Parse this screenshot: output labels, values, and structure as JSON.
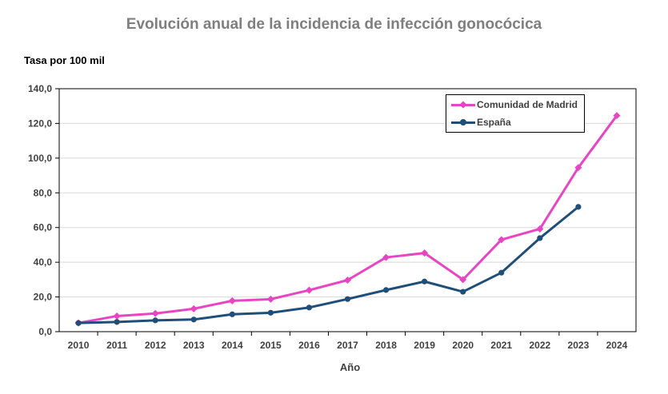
{
  "chart_data": {
    "type": "line",
    "title": "Evolución anual de la incidencia de infección gonocócica",
    "ylabel": "Tasa por 100 mil",
    "xlabel": "Año",
    "categories": [
      "2010",
      "2011",
      "2012",
      "2013",
      "2014",
      "2015",
      "2016",
      "2017",
      "2018",
      "2019",
      "2020",
      "2021",
      "2022",
      "2023",
      "2024"
    ],
    "ylim": [
      0,
      140
    ],
    "yticks": [
      "0,0",
      "20,0",
      "40,0",
      "60,0",
      "80,0",
      "100,0",
      "120,0",
      "140,0"
    ],
    "grid": true,
    "legend_position": "top-right",
    "series": [
      {
        "name": "Comunidad de Madrid",
        "color": "#e845c3",
        "marker": "diamond",
        "values": [
          5.0,
          9.0,
          10.5,
          13.2,
          17.8,
          18.7,
          23.9,
          29.7,
          42.8,
          45.3,
          30.0,
          53.0,
          59.2,
          94.5,
          124.5
        ]
      },
      {
        "name": "España",
        "color": "#1f4e79",
        "marker": "circle",
        "values": [
          5.0,
          5.6,
          6.5,
          7.0,
          10.0,
          10.9,
          13.9,
          18.8,
          24.0,
          28.9,
          23.0,
          34.0,
          53.9,
          71.9,
          null
        ]
      }
    ]
  }
}
